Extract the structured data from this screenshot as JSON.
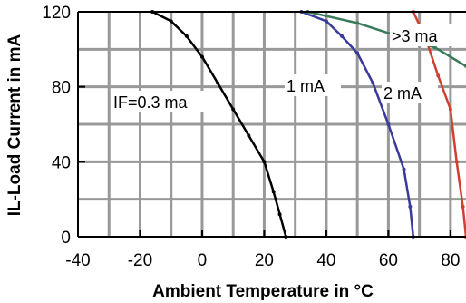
{
  "chart_data": {
    "type": "line",
    "xlabel": "Ambient Temperature in °C",
    "ylabel": "IL-Load Current in mA",
    "xlim": [
      -40,
      85
    ],
    "ylim": [
      0,
      120
    ],
    "x_ticks": [
      "-40",
      "-20",
      "0",
      "20",
      "40",
      "60",
      "80"
    ],
    "y_ticks": [
      "0",
      "40",
      "80",
      "120"
    ],
    "grid": true,
    "series": [
      {
        "name": "IF=0.3 ma",
        "color": "#000000",
        "points": [
          [
            -16,
            120
          ],
          [
            -10,
            115
          ],
          [
            -5,
            107
          ],
          [
            0,
            96
          ],
          [
            5,
            82
          ],
          [
            10,
            68
          ],
          [
            15,
            54
          ],
          [
            20,
            40
          ],
          [
            23,
            24
          ],
          [
            25,
            12
          ],
          [
            27,
            0
          ]
        ]
      },
      {
        "name": "1 mA",
        "color": "#3a3a9a",
        "points": [
          [
            32,
            120
          ],
          [
            40,
            115
          ],
          [
            45,
            107
          ],
          [
            50,
            98
          ],
          [
            55,
            82
          ],
          [
            60,
            60
          ],
          [
            65,
            36
          ],
          [
            67,
            16
          ],
          [
            68,
            0
          ]
        ]
      },
      {
        "name": "2 mA",
        "color": "#d04030",
        "points": [
          [
            68,
            120
          ],
          [
            72,
            106
          ],
          [
            76,
            86
          ],
          [
            80,
            68
          ],
          [
            82,
            40
          ],
          [
            84,
            16
          ],
          [
            85,
            0
          ]
        ]
      },
      {
        "name": ">3 ma",
        "color": "#3a7a5a",
        "points": [
          [
            34,
            120
          ],
          [
            50,
            114
          ],
          [
            65,
            106
          ],
          [
            75,
            101
          ],
          [
            85,
            91
          ]
        ]
      }
    ]
  }
}
